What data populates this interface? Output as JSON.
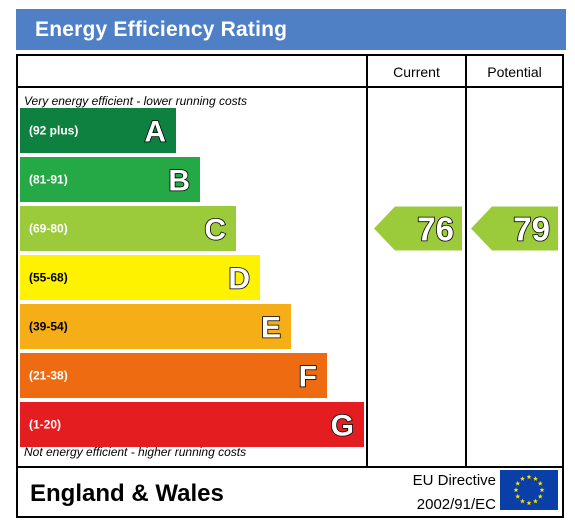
{
  "title": "Energy Efficiency Rating",
  "columns": {
    "current": "Current",
    "potential": "Potential"
  },
  "top_note": "Very energy efficient - lower running costs",
  "bottom_note": "Not energy efficient - higher running costs",
  "footer": {
    "region": "England & Wales",
    "directive_line1": "EU Directive",
    "directive_line2": "2002/91/EC",
    "flag_icon": "eu-flag-icon"
  },
  "chart_data": {
    "type": "bar",
    "bands": [
      {
        "range": "(92 plus)",
        "letter": "A",
        "color": "#0e8141"
      },
      {
        "range": "(81-91)",
        "letter": "B",
        "color": "#25a946"
      },
      {
        "range": "(69-80)",
        "letter": "C",
        "color": "#9bcb3b"
      },
      {
        "range": "(55-68)",
        "letter": "D",
        "color": "#fff200"
      },
      {
        "range": "(39-54)",
        "letter": "E",
        "color": "#f6ae17"
      },
      {
        "range": "(21-38)",
        "letter": "F",
        "color": "#ee6b12"
      },
      {
        "range": "(1-20)",
        "letter": "G",
        "color": "#e41d20"
      }
    ],
    "current": {
      "value": 76,
      "band": "C",
      "color": "#9bcb3b"
    },
    "potential": {
      "value": 79,
      "band": "C",
      "color": "#9bcb3b"
    }
  }
}
